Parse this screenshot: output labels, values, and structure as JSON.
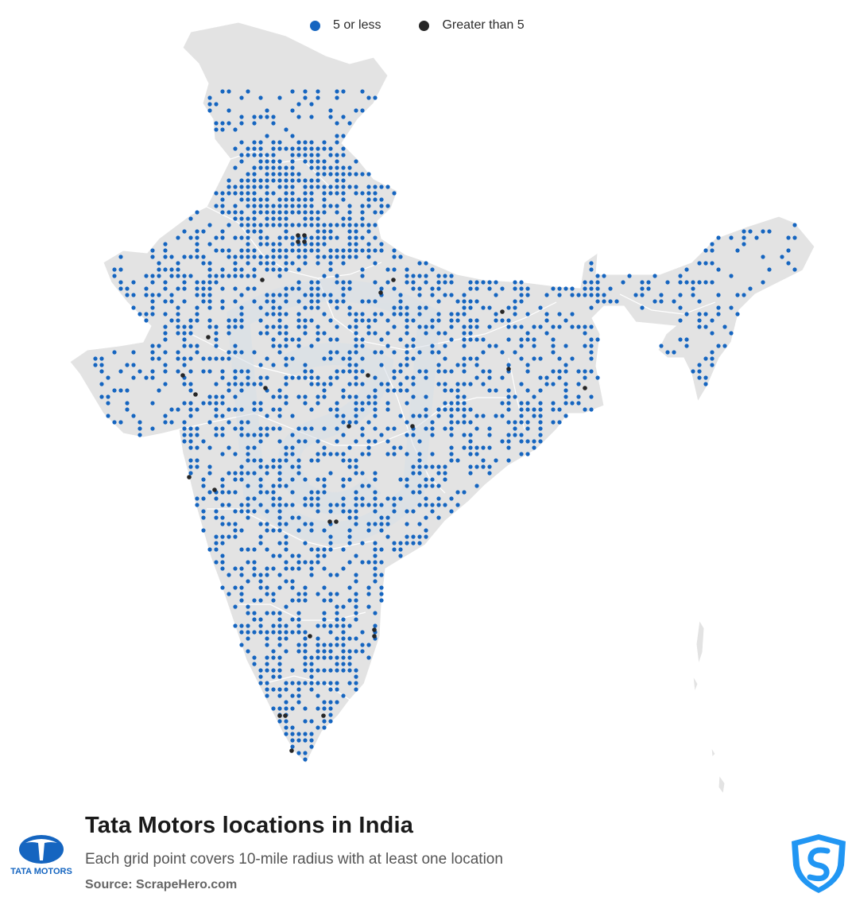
{
  "legend": {
    "items": [
      {
        "label": "5 or less",
        "color": "#1565c0"
      },
      {
        "label": "Greater than 5",
        "color": "#262626"
      }
    ]
  },
  "map": {
    "region": "India",
    "land_color": "#e3e3e3",
    "border_color": "#ffffff",
    "watermark_color": "#d5dde6"
  },
  "footer": {
    "title": "Tata Motors locations in India",
    "subtitle": "Each grid point covers 10-mile radius with at least one location",
    "source": "Source: ScrapeHero.com",
    "brand_logo_text": "TATA MOTORS",
    "brand_logo_icon": "tata-motors-logo",
    "publisher_logo_icon": "scrapehero-shield-logo"
  }
}
